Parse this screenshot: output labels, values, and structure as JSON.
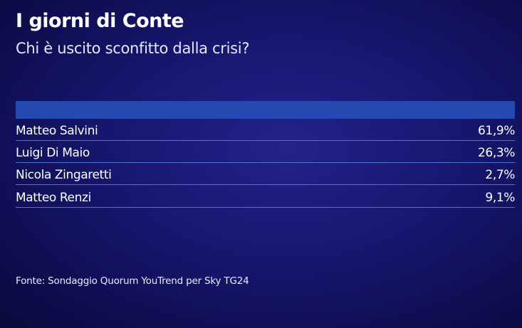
{
  "title": "I giorni di Conte",
  "subtitle": "Chi è uscito sconfitto dalla crisi?",
  "source": "Fonte: Sondaggio Quorum YouTrend per Sky TG24",
  "colors": {
    "header_bar": "#2449b0",
    "row_divider": "#4f72d6",
    "background": "#17166e"
  },
  "chart_data": {
    "type": "table",
    "title": "I giorni di Conte",
    "subtitle": "Chi è uscito sconfitto dalla crisi?",
    "rows": [
      {
        "label": "Matteo Salvini",
        "value": "61,9%"
      },
      {
        "label": "Luigi Di Maio",
        "value": "26,3%"
      },
      {
        "label": "Nicola Zingaretti",
        "value": "2,7%"
      },
      {
        "label": "Matteo Renzi",
        "value": "9,1%"
      }
    ]
  }
}
